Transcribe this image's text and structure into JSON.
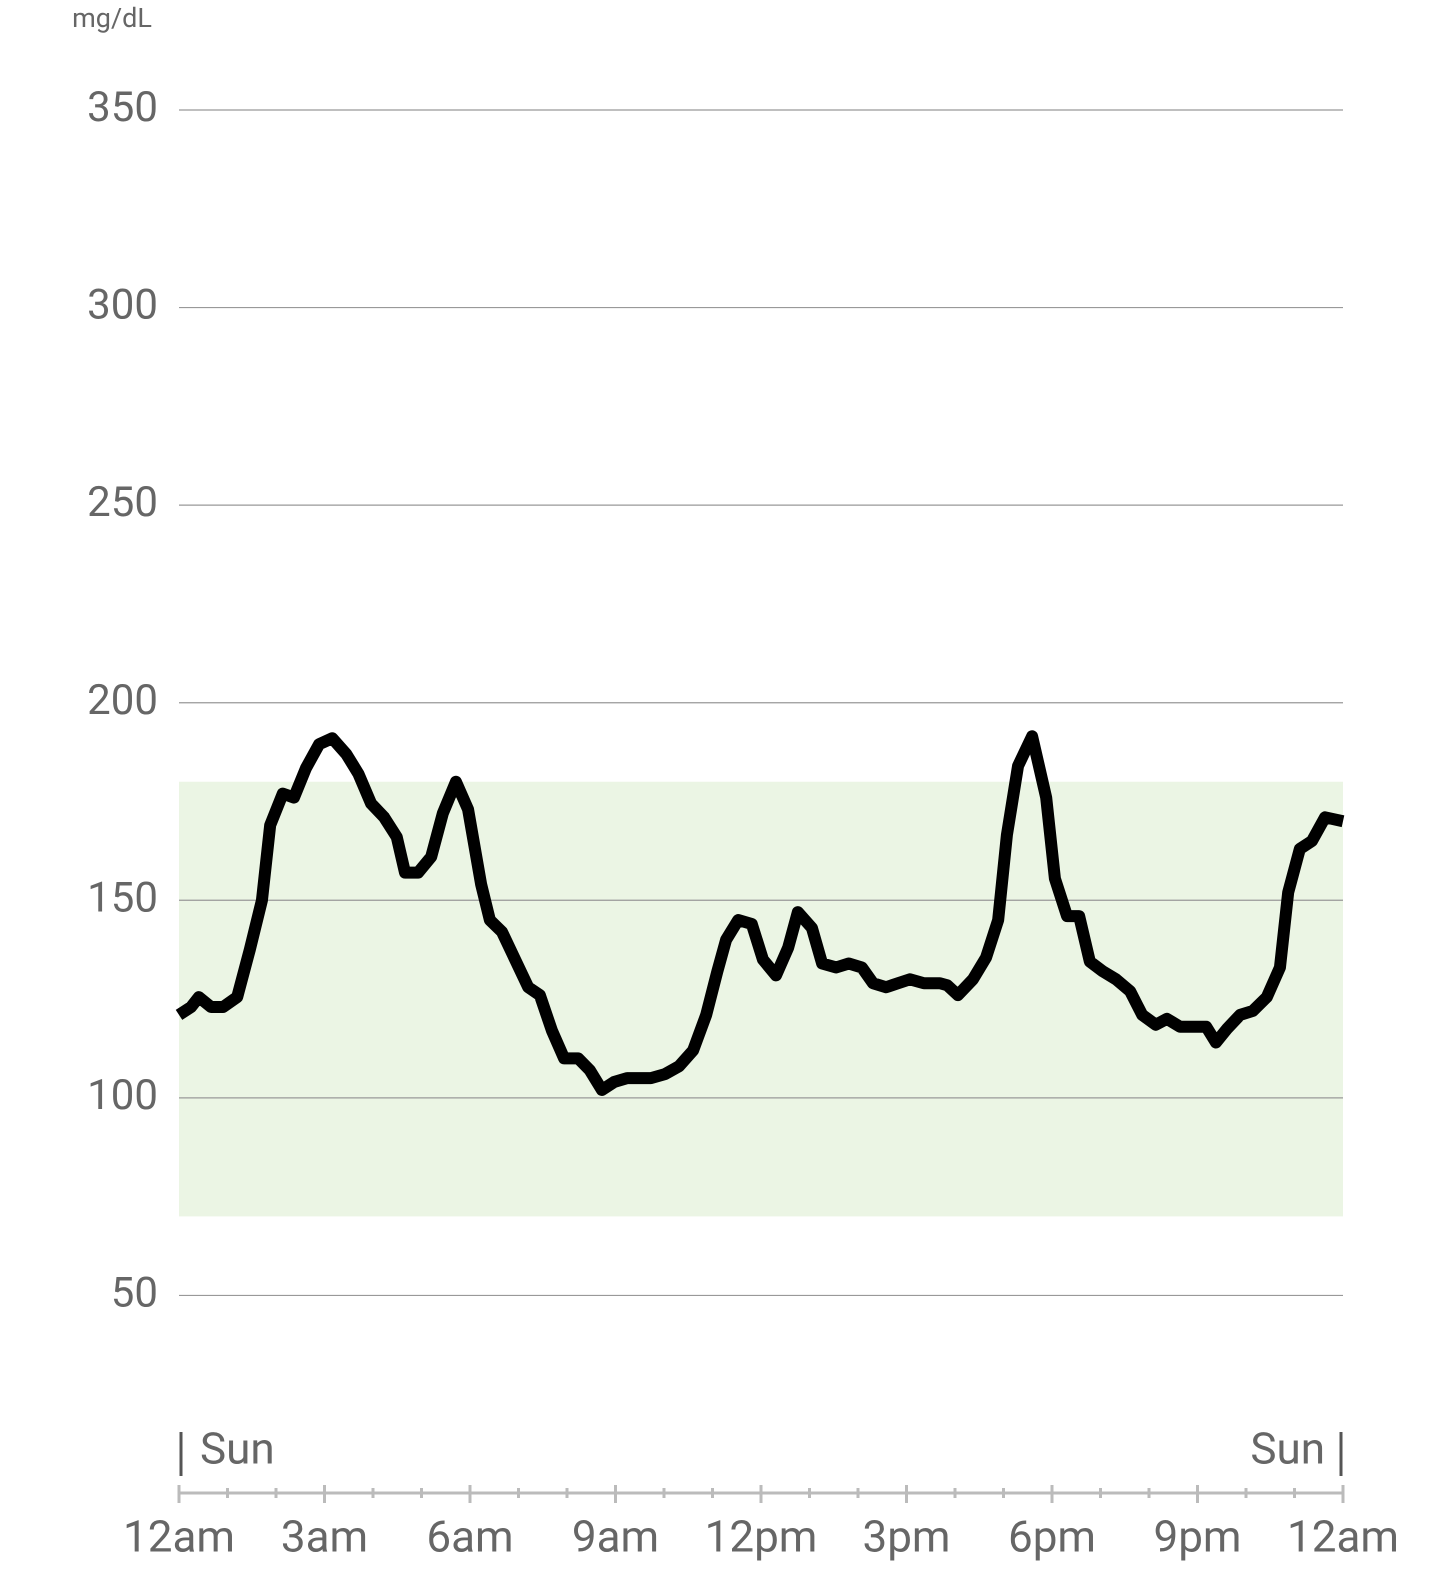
{
  "chart_data": {
    "type": "line",
    "y_unit_label": "mg/dL",
    "day_start_label": "Sun",
    "day_end_label": "Sun",
    "xlim": [
      0,
      24
    ],
    "xticks": [
      {
        "value": 0,
        "label": "12am"
      },
      {
        "value": 3,
        "label": "3am"
      },
      {
        "value": 6,
        "label": "6am"
      },
      {
        "value": 9,
        "label": "9am"
      },
      {
        "value": 12,
        "label": "12pm"
      },
      {
        "value": 15,
        "label": "3pm"
      },
      {
        "value": 18,
        "label": "6pm"
      },
      {
        "value": 21,
        "label": "9pm"
      },
      {
        "value": 24,
        "label": "12am"
      }
    ],
    "minor_xticks": [
      1,
      2,
      4,
      5,
      7,
      8,
      10,
      11,
      13,
      14,
      16,
      17,
      19,
      20,
      22,
      23
    ],
    "ylim": [
      0,
      350
    ],
    "yticks": [
      50,
      100,
      150,
      200,
      250,
      300,
      350
    ],
    "grid": true,
    "target_range": [
      70,
      180
    ],
    "target_color": "#ebf5e4",
    "series": [
      {
        "color": "#000000",
        "x": [
          0,
          0.25,
          0.41,
          0.66,
          0.91,
          1.2,
          1.46,
          1.71,
          1.88,
          2.14,
          2.37,
          2.62,
          2.89,
          3.16,
          3.45,
          3.7,
          3.96,
          4.23,
          4.49,
          4.66,
          4.93,
          5.2,
          5.44,
          5.71,
          5.96,
          6.23,
          6.41,
          6.66,
          6.93,
          7.2,
          7.44,
          7.69,
          7.94,
          8.23,
          8.47,
          8.72,
          8.97,
          9.24,
          9.51,
          9.73,
          10.02,
          10.31,
          10.6,
          10.87,
          11.1,
          11.28,
          11.53,
          11.81,
          12.04,
          12.31,
          12.56,
          12.76,
          13.05,
          13.26,
          13.55,
          13.81,
          14.08,
          14.31,
          14.58,
          14.82,
          15.07,
          15.36,
          15.69,
          15.84,
          16.06,
          16.37,
          16.64,
          16.89,
          17.07,
          17.3,
          17.59,
          17.88,
          18.06,
          18.31,
          18.56,
          18.78,
          19.05,
          19.32,
          19.61,
          19.86,
          20.14,
          20.37,
          20.64,
          20.93,
          21.18,
          21.38,
          21.61,
          21.88,
          22.14,
          22.43,
          22.7,
          22.87,
          23.11,
          23.36,
          23.63,
          24
        ],
        "values": [
          121,
          123,
          125.5,
          123,
          123,
          125.5,
          137.5,
          150,
          169,
          177,
          176,
          183.5,
          189.5,
          191,
          187,
          182,
          174.5,
          171,
          166,
          157,
          157,
          161,
          172,
          180,
          173,
          154,
          145,
          142,
          135,
          128,
          126,
          117,
          110,
          110,
          107,
          102,
          104,
          105,
          105,
          105,
          106,
          108,
          112,
          121,
          132,
          140,
          145,
          144,
          135,
          131,
          138,
          147,
          143,
          134,
          133,
          134,
          133,
          129,
          128,
          129,
          130,
          129,
          129,
          128.5,
          126,
          130,
          135.5,
          145,
          166.5,
          184,
          191.5,
          176,
          155.5,
          146,
          146,
          134.5,
          132,
          130,
          127,
          121,
          118.5,
          120,
          118,
          118,
          118,
          114,
          117.5,
          121,
          122,
          125.5,
          133,
          152,
          163,
          165,
          171,
          170
        ]
      }
    ]
  }
}
